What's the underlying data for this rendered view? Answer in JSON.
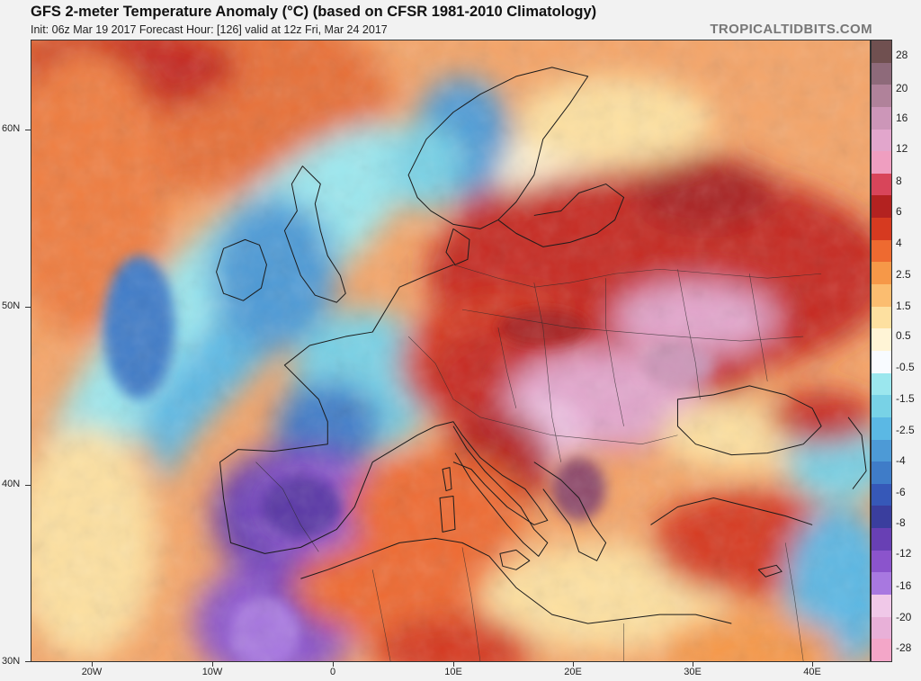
{
  "header": {
    "title": "GFS 2-meter Temperature Anomaly (°C) (based on CFSR 1981-2010 Climatology)",
    "subtitle": "Init: 06z Mar 19 2017   Forecast Hour: [126]   valid at 12z Fri, Mar 24 2017",
    "brand": "TROPICALTIDBITS.COM"
  },
  "map": {
    "lat_labels": [
      "60N",
      "50N",
      "40N",
      "30N"
    ],
    "lon_labels": [
      "20W",
      "10W",
      "0",
      "10E",
      "20E",
      "30E",
      "40E"
    ]
  },
  "colorbar": {
    "labels": [
      "28",
      "20",
      "16",
      "12",
      "8",
      "6",
      "4",
      "2.5",
      "1.5",
      "0.5",
      "-0.5",
      "-1.5",
      "-2.5",
      "-4",
      "-6",
      "-8",
      "-12",
      "-16",
      "-20",
      "-28"
    ],
    "colors": [
      "#705050",
      "#8e6a7a",
      "#b0829a",
      "#cc96b8",
      "#e2a6cc",
      "#ef9ec0",
      "#d8455a",
      "#b32220",
      "#d63a20",
      "#ee6a30",
      "#f69848",
      "#fbbd70",
      "#fde0a0",
      "#fff4d6",
      "#f8fbff",
      "#9be7ee",
      "#78d2e6",
      "#5bb8e4",
      "#4d9ad6",
      "#3f7cc8",
      "#3658b8",
      "#3a3e9e",
      "#6840b4",
      "#8b54cc",
      "#a878e0",
      "#f0c8e8",
      "#e8b0d8",
      "#f3a6c8"
    ]
  }
}
